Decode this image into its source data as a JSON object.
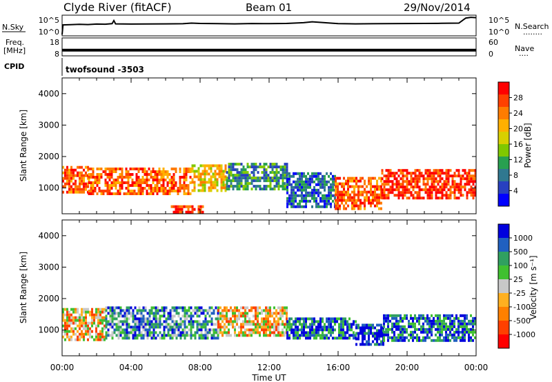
{
  "header": {
    "title": "Clyde River (fitACF)",
    "beam": "Beam 01",
    "date": "29/Nov/2014"
  },
  "chart_data": [
    {
      "type": "line",
      "panel": "nsky",
      "left_label": "N.Sky",
      "right_label": "N.Search",
      "right_legend": "........",
      "left_ticks": [
        "10^5",
        "10^0"
      ],
      "right_ticks": [
        "10^5",
        "10^0"
      ],
      "yscale": "log",
      "ylim": [
        1,
        100000
      ],
      "series": [
        {
          "values": [
            [
              0.0,
              2
            ],
            [
              0.05,
              450
            ],
            [
              0.5,
              500
            ],
            [
              1.0,
              600
            ],
            [
              1.5,
              550
            ],
            [
              2.0,
              700
            ],
            [
              2.5,
              650
            ],
            [
              2.9,
              900
            ],
            [
              3.0,
              5000
            ],
            [
              3.1,
              800
            ],
            [
              4.0,
              700
            ],
            [
              5.0,
              750
            ],
            [
              6.0,
              800
            ],
            [
              7.0,
              850
            ],
            [
              7.5,
              1200
            ],
            [
              8.0,
              1000
            ],
            [
              9.0,
              900
            ],
            [
              10.0,
              800
            ],
            [
              11.0,
              950
            ],
            [
              12.0,
              900
            ],
            [
              13.0,
              1000
            ],
            [
              14.0,
              1500
            ],
            [
              14.5,
              2500
            ],
            [
              15.0,
              1800
            ],
            [
              16.0,
              900
            ],
            [
              17.0,
              800
            ],
            [
              18.0,
              850
            ],
            [
              19.0,
              900
            ],
            [
              20.0,
              950
            ],
            [
              21.0,
              1000
            ],
            [
              22.0,
              1100
            ],
            [
              23.0,
              1200
            ],
            [
              23.4,
              20000
            ],
            [
              23.7,
              30000
            ],
            [
              24.0,
              25000
            ]
          ]
        }
      ]
    },
    {
      "type": "line",
      "panel": "freq",
      "left_label": "Freq.",
      "left_unit": "[MHz]",
      "right_label": "Nave",
      "right_legend": "....",
      "left_ticks": [
        "18",
        "8"
      ],
      "right_ticks": [
        "60",
        "0"
      ],
      "ylim": [
        8,
        18
      ],
      "series": [
        {
          "values": [
            [
              0,
              11.2
            ],
            [
              24,
              11.2
            ]
          ]
        }
      ]
    },
    {
      "type": "table",
      "panel": "cpid",
      "left_label": "CPID",
      "text": "twofsound  -3503"
    },
    {
      "type": "heatmap",
      "panel": "power",
      "ylabel": "Slant Range [km]",
      "yticks": [
        1000,
        2000,
        3000,
        4000
      ],
      "ylim": [
        180,
        4500
      ],
      "xlim": [
        0,
        24
      ],
      "colorbar": {
        "label": "Power [dB]",
        "ticks": [
          "28",
          "24",
          "20",
          "16",
          "12",
          "8",
          "4"
        ],
        "colors": [
          "#ff0000",
          "#ff4000",
          "#ff7c00",
          "#ffb000",
          "#d8d000",
          "#80c800",
          "#28a050",
          "#307890",
          "#2840c0",
          "#0000ff"
        ]
      },
      "values": [
        {
          "t": [
            0.0,
            1.5
          ],
          "r": [
            900,
            1700
          ],
          "level": 24
        },
        {
          "t": [
            1.5,
            7.5
          ],
          "r": [
            800,
            1650
          ],
          "level": 26
        },
        {
          "t": [
            7.5,
            9.5
          ],
          "r": [
            950,
            1750
          ],
          "level": 20
        },
        {
          "t": [
            9.5,
            13.0
          ],
          "r": [
            950,
            1800
          ],
          "level": 10
        },
        {
          "t": [
            13.0,
            15.8
          ],
          "r": [
            400,
            1500
          ],
          "level": 8
        },
        {
          "t": [
            15.8,
            18.5
          ],
          "r": [
            350,
            1350
          ],
          "level": 26
        },
        {
          "t": [
            18.5,
            24.0
          ],
          "r": [
            650,
            1600
          ],
          "level": 27
        },
        {
          "t": [
            6.3,
            8.2
          ],
          "r": [
            200,
            450
          ],
          "level": 28
        }
      ]
    },
    {
      "type": "heatmap",
      "panel": "velocity",
      "ylabel": "Slant Range [km]",
      "yticks": [
        1000,
        2000,
        3000,
        4000
      ],
      "ylim": [
        180,
        4500
      ],
      "xlim": [
        0,
        24
      ],
      "xlabel": "Time UT",
      "xticks": [
        "00:00",
        "04:00",
        "08:00",
        "12:00",
        "16:00",
        "20:00",
        "00:00"
      ],
      "colorbar": {
        "label": "Velocity [m s⁻¹]",
        "ticks": [
          "1000",
          "500",
          "100",
          "25",
          "-25",
          "-100",
          "-500",
          "-1000"
        ],
        "colors": [
          "#0000dd",
          "#2060c0",
          "#30a060",
          "#40c030",
          "#c8c8c8",
          "#ffb020",
          "#ff8000",
          "#ff4000",
          "#ff0000"
        ]
      },
      "values": [
        {
          "t": [
            0.0,
            2.5
          ],
          "r": [
            700,
            1700
          ],
          "level": -100
        },
        {
          "t": [
            2.5,
            9.0
          ],
          "r": [
            750,
            1750
          ],
          "level": 100
        },
        {
          "t": [
            9.0,
            13.0
          ],
          "r": [
            800,
            1750
          ],
          "level": -100
        },
        {
          "t": [
            13.0,
            17.0
          ],
          "r": [
            700,
            1400
          ],
          "level": 500
        },
        {
          "t": [
            17.0,
            18.6
          ],
          "r": [
            550,
            1200
          ],
          "level": 1000
        },
        {
          "t": [
            18.6,
            24.0
          ],
          "r": [
            700,
            1500
          ],
          "level": 500
        }
      ]
    }
  ]
}
